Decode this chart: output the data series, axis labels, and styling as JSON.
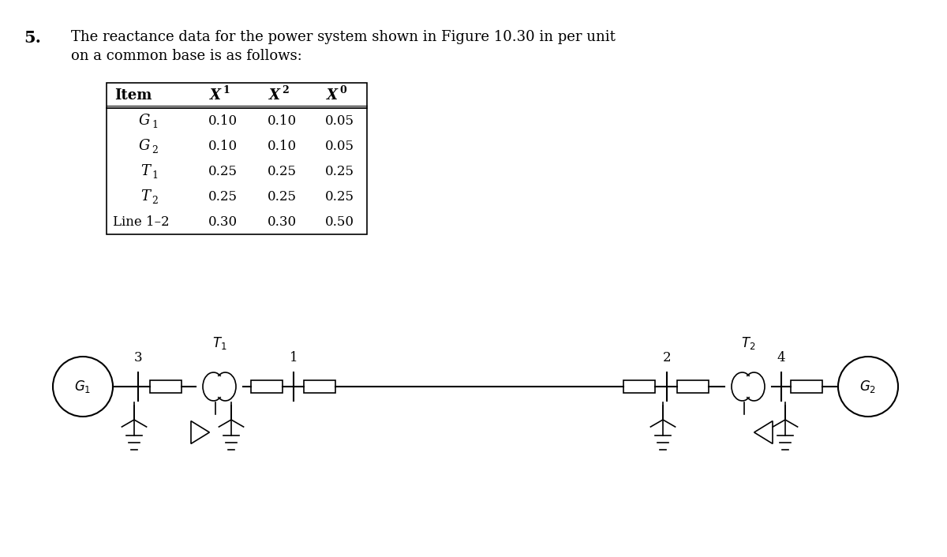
{
  "title_number": "5.",
  "title_text": "The reactance data for the power system shown in Figure 10.30 in per unit\non a common base is as follows:",
  "table_headers": [
    "Item",
    "X^1",
    "X^2",
    "X^0"
  ],
  "table_rows": [
    [
      "G",
      "1",
      "0.10",
      "0.10",
      "0.05"
    ],
    [
      "G",
      "2",
      "0.10",
      "0.10",
      "0.05"
    ],
    [
      "T",
      "1",
      "0.25",
      "0.25",
      "0.25"
    ],
    [
      "T",
      "2",
      "0.25",
      "0.25",
      "0.25"
    ],
    [
      "Line 1-2",
      "",
      "0.30",
      "0.30",
      "0.50"
    ]
  ],
  "bg_color": "#ffffff",
  "text_color": "#000000"
}
